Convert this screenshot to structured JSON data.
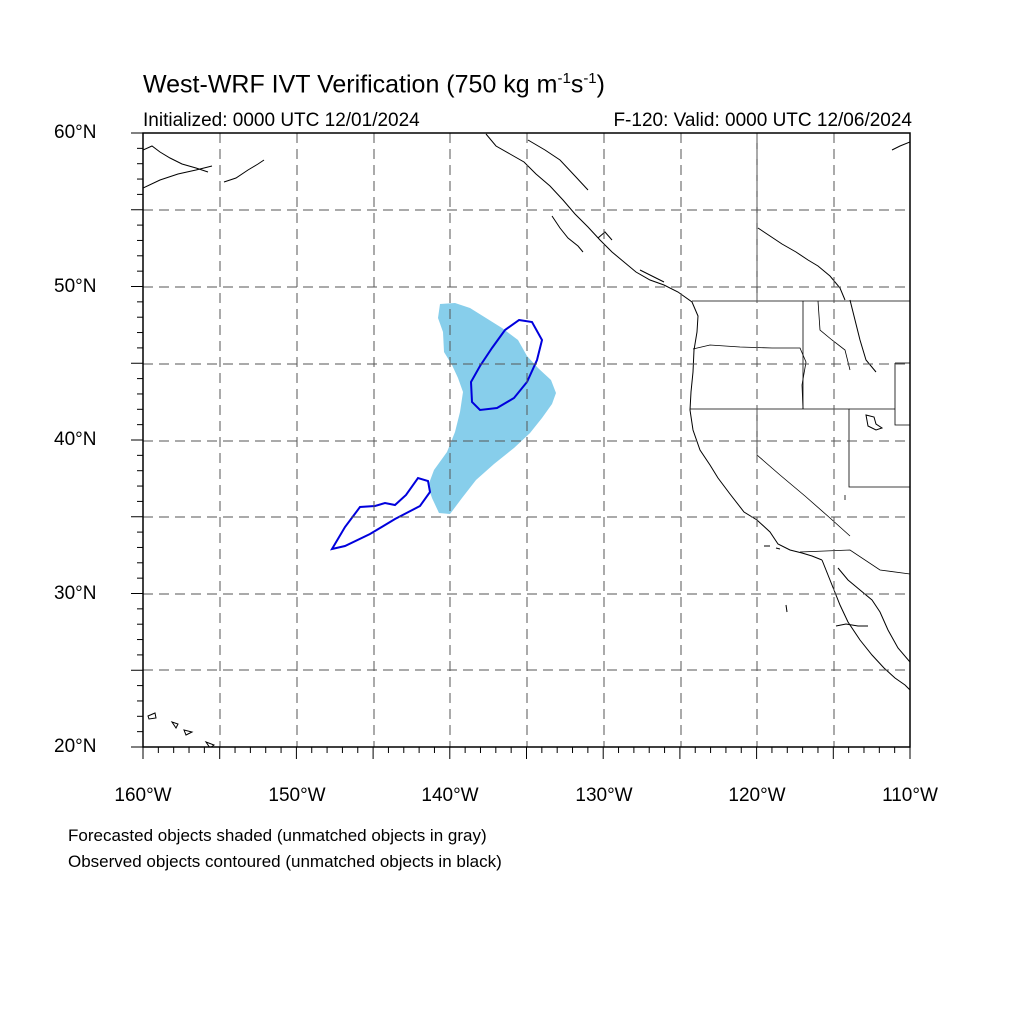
{
  "title": {
    "main": "West-WRF IVT Verification (750 kg m",
    "sup1": "-1",
    "mid": "s",
    "sup2": "-1",
    "end": ")"
  },
  "initialized": "Initialized: 0000 UTC 12/01/2024",
  "valid": "F-120: Valid: 0000 UTC 12/06/2024",
  "lat_labels": [
    "60°N",
    "50°N",
    "40°N",
    "30°N",
    "20°N"
  ],
  "lon_labels": [
    "160°W",
    "150°W",
    "140°W",
    "130°W",
    "120°W",
    "110°W"
  ],
  "notes": [
    "Forecasted objects shaded (unmatched objects in gray)",
    "Observed objects contoured (unmatched objects in black)"
  ],
  "map": {
    "extent": {
      "lon_min": -160,
      "lon_max": -110,
      "lat_min": 20,
      "lat_max": 60
    },
    "forecast_color": "#87ceeb",
    "observed_color": "#0000dd"
  }
}
